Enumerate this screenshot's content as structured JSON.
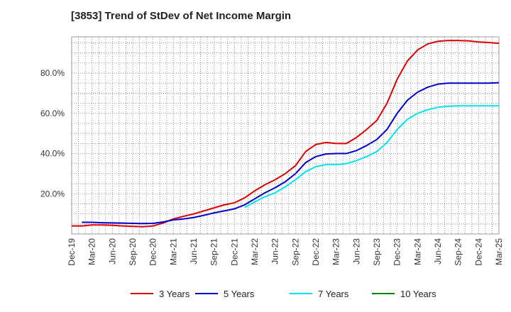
{
  "title": "[3853]  Trend of StDev of Net Income Margin",
  "chart_data": {
    "type": "line",
    "title": "[3853]  Trend of StDev of Net Income Margin",
    "xlabel": "",
    "ylabel": "",
    "ylim": [
      0,
      0.98
    ],
    "y_ticks": [
      0.2,
      0.4,
      0.6,
      0.8
    ],
    "y_tick_labels": [
      "20.0%",
      "40.0%",
      "60.0%",
      "80.0%"
    ],
    "x_tick_labels": [
      "Dec-19",
      "Mar-20",
      "Jun-20",
      "Sep-20",
      "Dec-20",
      "Mar-21",
      "Jun-21",
      "Sep-21",
      "Dec-21",
      "Mar-22",
      "Jun-22",
      "Sep-22",
      "Dec-22",
      "Mar-23",
      "Jun-23",
      "Sep-23",
      "Dec-23",
      "Mar-24",
      "Jun-24",
      "Sep-24",
      "Dec-24",
      "Mar-25"
    ],
    "grid": true,
    "legend_position": "bottom",
    "series": [
      {
        "name": "3 Years",
        "color": "#dd0000",
        "points": [
          [
            0,
            0.04
          ],
          [
            1,
            0.04
          ],
          [
            2,
            0.045
          ],
          [
            3,
            0.045
          ],
          [
            4,
            0.043
          ],
          [
            5,
            0.04
          ],
          [
            6,
            0.038
          ],
          [
            7,
            0.036
          ],
          [
            8,
            0.04
          ],
          [
            9,
            0.055
          ],
          [
            10,
            0.075
          ],
          [
            11,
            0.088
          ],
          [
            12,
            0.1
          ],
          [
            13,
            0.115
          ],
          [
            14,
            0.13
          ],
          [
            15,
            0.145
          ],
          [
            16,
            0.155
          ],
          [
            17,
            0.18
          ],
          [
            18,
            0.215
          ],
          [
            19,
            0.245
          ],
          [
            20,
            0.27
          ],
          [
            21,
            0.3
          ],
          [
            22,
            0.34
          ],
          [
            23,
            0.41
          ],
          [
            24,
            0.445
          ],
          [
            25,
            0.455
          ],
          [
            26,
            0.45
          ],
          [
            27,
            0.45
          ],
          [
            28,
            0.48
          ],
          [
            29,
            0.52
          ],
          [
            30,
            0.565
          ],
          [
            31,
            0.65
          ],
          [
            32,
            0.77
          ],
          [
            33,
            0.86
          ],
          [
            34,
            0.915
          ],
          [
            35,
            0.945
          ],
          [
            36,
            0.958
          ],
          [
            37,
            0.962
          ],
          [
            38,
            0.962
          ],
          [
            39,
            0.96
          ],
          [
            40,
            0.955
          ],
          [
            41,
            0.952
          ],
          [
            42,
            0.948
          ]
        ]
      },
      {
        "name": "5 Years",
        "color": "#0000cc",
        "points": [
          [
            1,
            0.058
          ],
          [
            2,
            0.058
          ],
          [
            3,
            0.056
          ],
          [
            4,
            0.055
          ],
          [
            5,
            0.054
          ],
          [
            6,
            0.053
          ],
          [
            7,
            0.052
          ],
          [
            8,
            0.053
          ],
          [
            9,
            0.06
          ],
          [
            10,
            0.07
          ],
          [
            11,
            0.075
          ],
          [
            12,
            0.082
          ],
          [
            13,
            0.093
          ],
          [
            14,
            0.105
          ],
          [
            15,
            0.115
          ],
          [
            16,
            0.125
          ],
          [
            17,
            0.145
          ],
          [
            18,
            0.175
          ],
          [
            19,
            0.205
          ],
          [
            20,
            0.23
          ],
          [
            21,
            0.26
          ],
          [
            22,
            0.3
          ],
          [
            23,
            0.355
          ],
          [
            24,
            0.385
          ],
          [
            25,
            0.398
          ],
          [
            26,
            0.4
          ],
          [
            27,
            0.4
          ],
          [
            28,
            0.415
          ],
          [
            29,
            0.44
          ],
          [
            30,
            0.47
          ],
          [
            31,
            0.52
          ],
          [
            32,
            0.6
          ],
          [
            33,
            0.665
          ],
          [
            34,
            0.705
          ],
          [
            35,
            0.73
          ],
          [
            36,
            0.745
          ],
          [
            37,
            0.75
          ],
          [
            38,
            0.75
          ],
          [
            39,
            0.75
          ],
          [
            40,
            0.75
          ],
          [
            41,
            0.75
          ],
          [
            42,
            0.752
          ]
        ]
      },
      {
        "name": "7 Years",
        "color": "#00e5ee",
        "points": [
          [
            17,
            0.132
          ],
          [
            18,
            0.16
          ],
          [
            19,
            0.185
          ],
          [
            20,
            0.205
          ],
          [
            21,
            0.235
          ],
          [
            22,
            0.27
          ],
          [
            23,
            0.31
          ],
          [
            24,
            0.335
          ],
          [
            25,
            0.345
          ],
          [
            26,
            0.345
          ],
          [
            27,
            0.35
          ],
          [
            28,
            0.365
          ],
          [
            29,
            0.385
          ],
          [
            30,
            0.41
          ],
          [
            31,
            0.455
          ],
          [
            32,
            0.52
          ],
          [
            33,
            0.57
          ],
          [
            34,
            0.6
          ],
          [
            35,
            0.618
          ],
          [
            36,
            0.63
          ],
          [
            37,
            0.635
          ],
          [
            38,
            0.637
          ],
          [
            39,
            0.637
          ],
          [
            40,
            0.637
          ],
          [
            41,
            0.637
          ],
          [
            42,
            0.637
          ]
        ]
      },
      {
        "name": "10 Years",
        "color": "#008800",
        "points": []
      }
    ]
  }
}
